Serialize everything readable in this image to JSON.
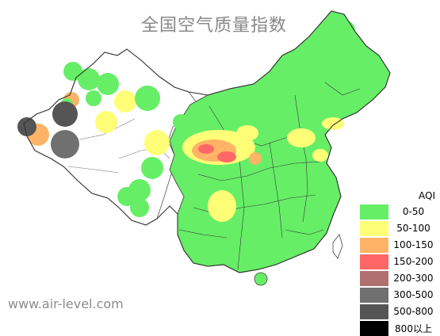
{
  "title": "全国空气质量指数",
  "footer": "www.air-level.com",
  "legend": {
    "title": "AQI",
    "items": [
      {
        "label": "0-50",
        "color": "#66ee66"
      },
      {
        "label": "50-100",
        "color": "#ffff77"
      },
      {
        "label": "100-150",
        "color": "#ffb366"
      },
      {
        "label": "150-200",
        "color": "#ff6666"
      },
      {
        "label": "200-300",
        "color": "#b07070"
      },
      {
        "label": "300-500",
        "color": "#707070"
      },
      {
        "label": "500-800",
        "color": "#555555"
      },
      {
        "label": "800以上",
        "color": "#000000"
      }
    ]
  }
}
